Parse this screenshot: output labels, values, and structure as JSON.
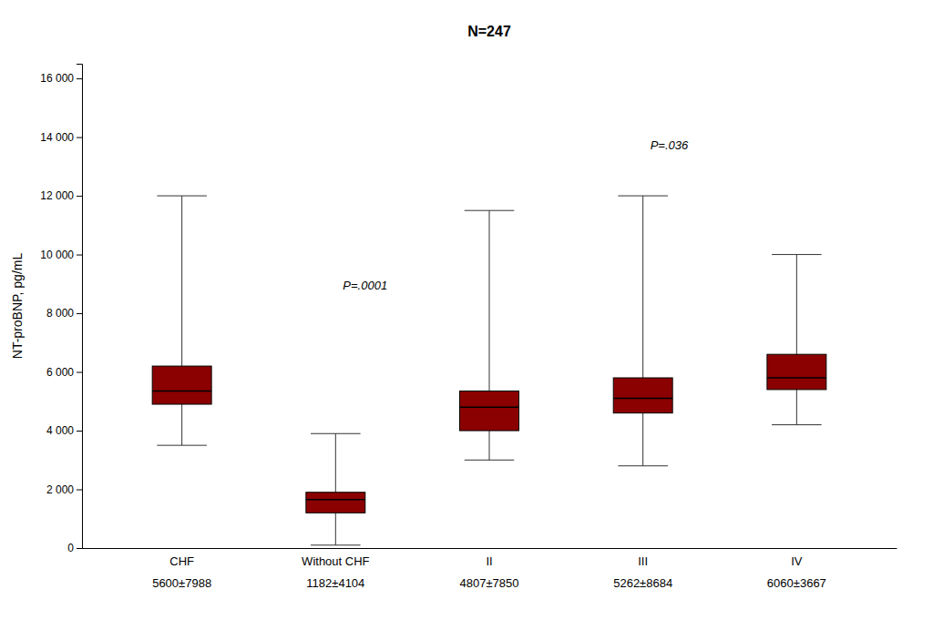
{
  "chart_data": {
    "type": "box",
    "title": "N=247",
    "ylabel": "NT-proBNP, pg/mL",
    "categories": [
      "CHF",
      "Without CHF",
      "II",
      "III",
      "IV"
    ],
    "sublabels": [
      "5600±7988",
      "1182±4104",
      "4807±7850",
      "5262±8684",
      "6060±3667"
    ],
    "whisker_low": [
      3500,
      100,
      3000,
      2800,
      4200
    ],
    "q1": [
      4900,
      1200,
      4000,
      4600,
      5400
    ],
    "median": [
      5350,
      1650,
      4800,
      5100,
      5800
    ],
    "q3": [
      6200,
      1900,
      5350,
      5800,
      6600
    ],
    "whisker_high": [
      12000,
      3900,
      11500,
      12000,
      10000
    ],
    "color": "#8b0000",
    "ylim": [
      0,
      16500
    ],
    "yticks": [
      0,
      {
        "value": 2000,
        "label": "2 000"
      },
      {
        "value": 4000,
        "label": "4 000"
      },
      {
        "value": 6000,
        "label": "6 000"
      },
      {
        "value": 8000,
        "label": "8 000"
      },
      {
        "value": 10000,
        "label": "10 000"
      },
      {
        "value": 12000,
        "label": "12 000"
      },
      {
        "value": 14000,
        "label": "14 000"
      },
      {
        "value": 16000,
        "label": "16 000"
      }
    ],
    "grid": false,
    "annotations": [
      {
        "text": "P=.0001",
        "category": "Without CHF",
        "y": 8800
      },
      {
        "text": "P=.036",
        "category": "III",
        "y": 13600
      }
    ]
  }
}
